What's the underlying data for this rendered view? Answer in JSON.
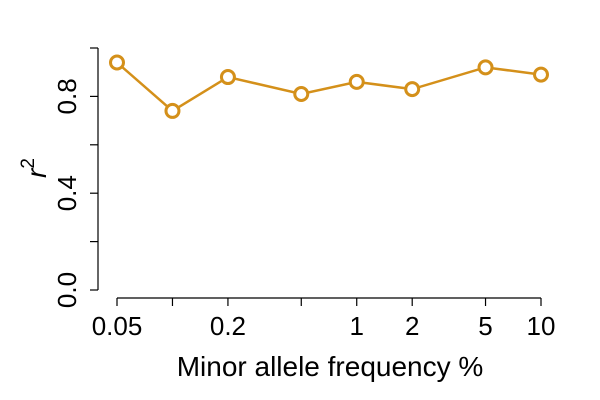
{
  "chart_data": {
    "type": "line",
    "x_scale": "log",
    "xlabel": "Minor allele frequency %",
    "ylabel_base": "r",
    "ylabel_superscript": "2",
    "xlim": [
      0.05,
      10
    ],
    "ylim": [
      0.0,
      1.0
    ],
    "x_ticks": [
      0.05,
      0.1,
      0.2,
      0.5,
      1,
      2,
      5,
      10
    ],
    "x_tick_labels": [
      "0.05",
      "",
      "0.2",
      "",
      "1",
      "2",
      "5",
      "10"
    ],
    "y_ticks": [
      0.0,
      0.2,
      0.4,
      0.6,
      0.8,
      1.0
    ],
    "y_tick_labels": [
      "0.0",
      "",
      "0.4",
      "",
      "0.8",
      ""
    ],
    "grid": false,
    "series": [
      {
        "color": "#D4901A",
        "x": [
          0.05,
          0.1,
          0.2,
          0.5,
          1,
          2,
          5,
          10
        ],
        "y": [
          0.94,
          0.74,
          0.88,
          0.81,
          0.86,
          0.83,
          0.92,
          0.89
        ]
      }
    ]
  }
}
